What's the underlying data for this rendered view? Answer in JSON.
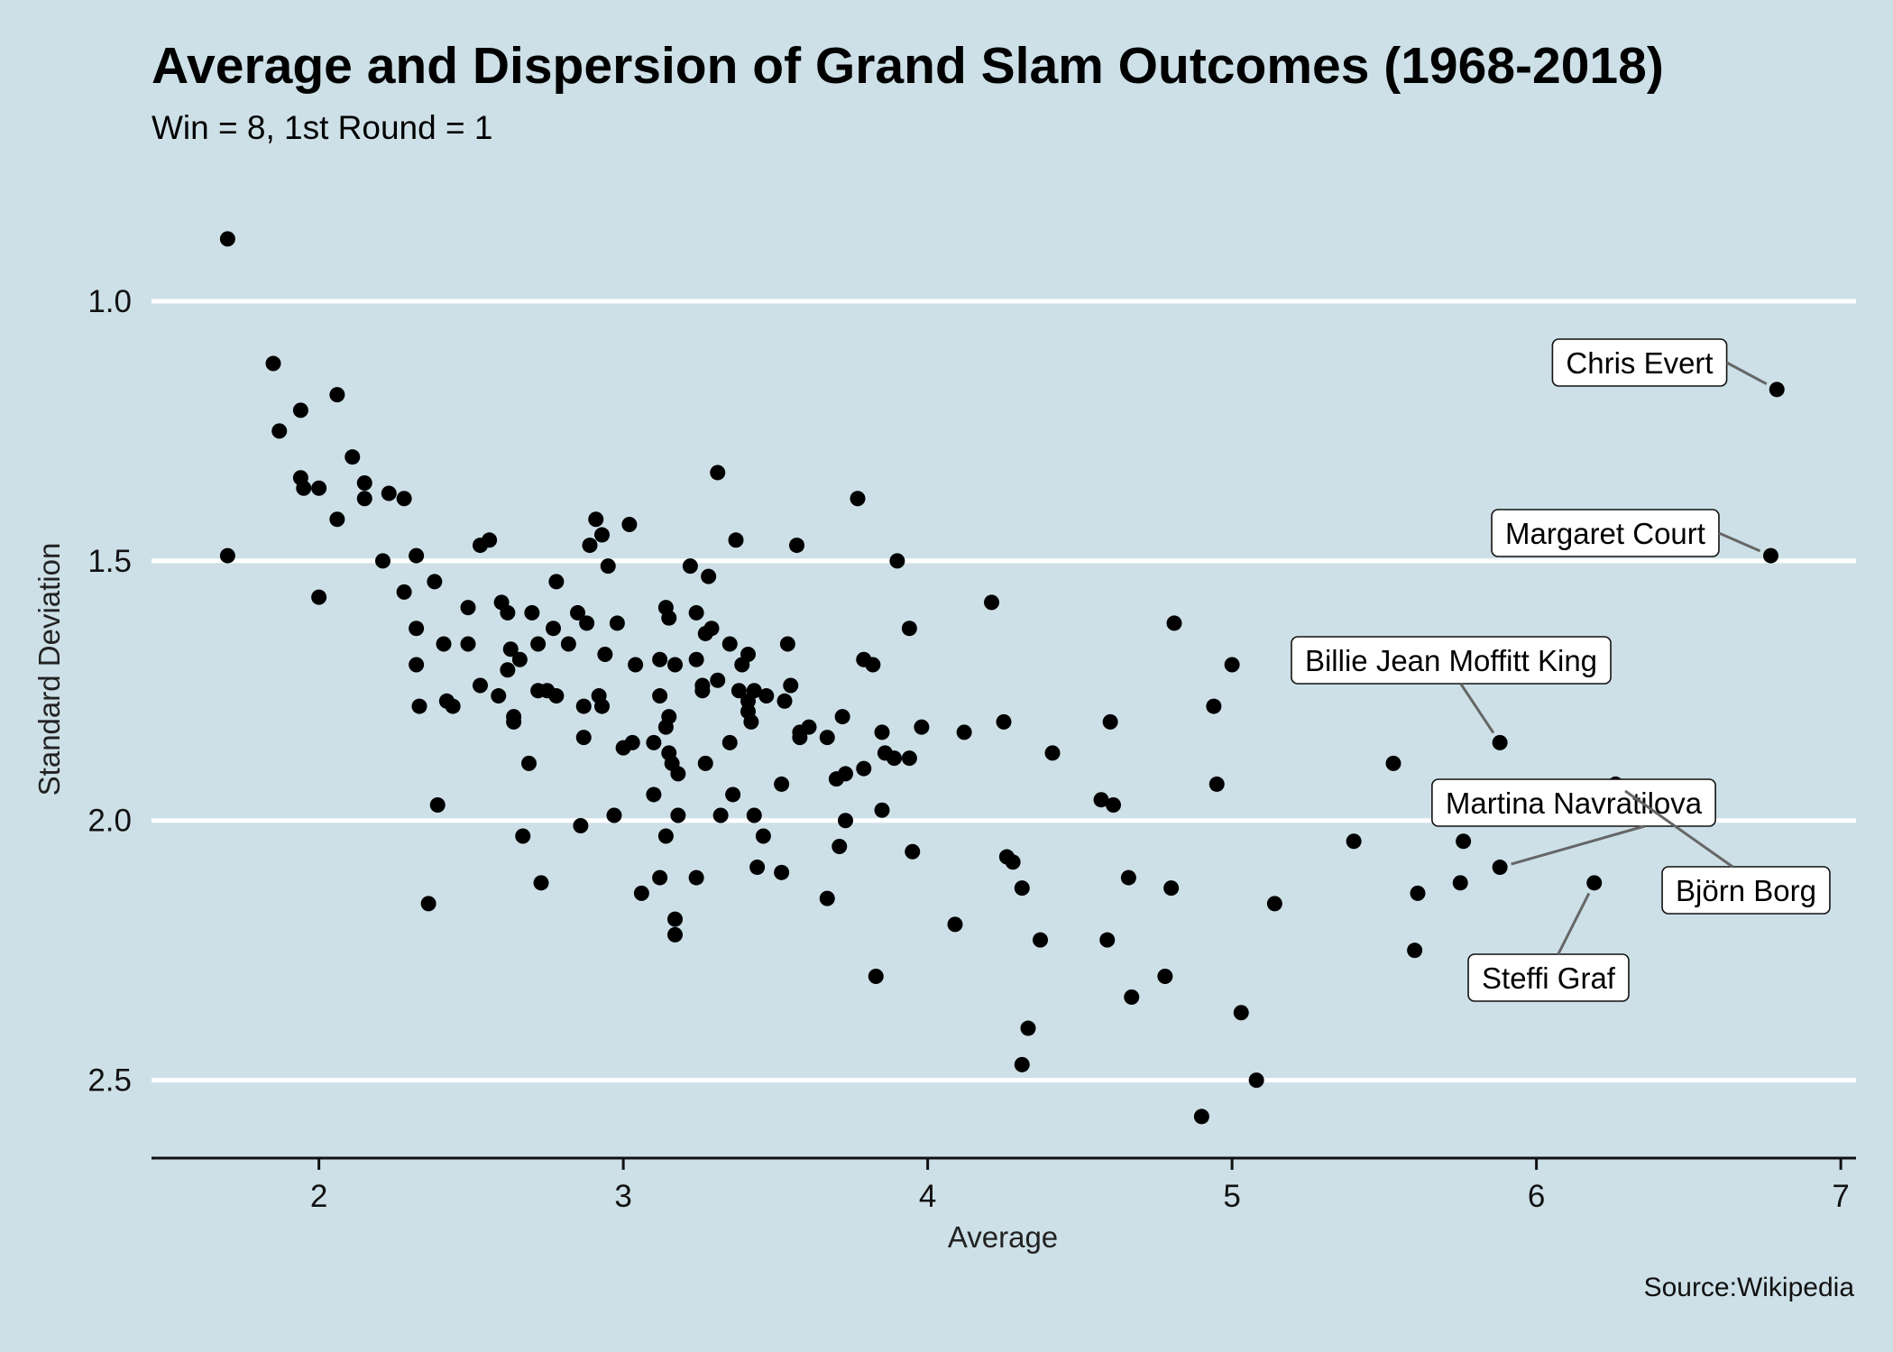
{
  "chart_data": {
    "type": "scatter",
    "title": "Average and Dispersion of Grand Slam Outcomes (1968-2018)",
    "subtitle": "Win = 8, 1st Round = 1",
    "xlabel": "Average",
    "ylabel": "Standard Deviation",
    "caption": "Source:Wikipedia",
    "xlim": [
      1.45,
      7.05
    ],
    "ylim": [
      0.75,
      2.65
    ],
    "y_reversed": true,
    "x_ticks": [
      "2",
      "3",
      "4",
      "5",
      "6",
      "7"
    ],
    "y_ticks": [
      "1.0",
      "1.5",
      "2.0",
      "2.5"
    ],
    "grid": "horizontal major lines, white",
    "point_color": "#000000",
    "background": "#cde0e7",
    "points": [
      [
        1.7,
        0.88
      ],
      [
        1.7,
        1.49
      ],
      [
        1.85,
        1.12
      ],
      [
        1.87,
        1.25
      ],
      [
        1.94,
        1.21
      ],
      [
        1.94,
        1.34
      ],
      [
        1.95,
        1.36
      ],
      [
        2.0,
        1.36
      ],
      [
        2.0,
        1.57
      ],
      [
        2.06,
        1.18
      ],
      [
        2.06,
        1.42
      ],
      [
        2.11,
        1.3
      ],
      [
        2.15,
        1.35
      ],
      [
        2.15,
        1.38
      ],
      [
        2.21,
        1.5
      ],
      [
        2.23,
        1.37
      ],
      [
        2.28,
        1.38
      ],
      [
        2.28,
        1.56
      ],
      [
        2.32,
        1.49
      ],
      [
        2.32,
        1.63
      ],
      [
        2.32,
        1.7
      ],
      [
        2.33,
        1.78
      ],
      [
        2.38,
        1.54
      ],
      [
        2.39,
        1.97
      ],
      [
        2.36,
        2.16
      ],
      [
        2.41,
        1.66
      ],
      [
        2.42,
        1.77
      ],
      [
        2.44,
        1.78
      ],
      [
        2.49,
        1.59
      ],
      [
        2.49,
        1.66
      ],
      [
        2.53,
        1.47
      ],
      [
        2.53,
        1.74
      ],
      [
        2.56,
        1.46
      ],
      [
        2.59,
        1.76
      ],
      [
        2.6,
        1.58
      ],
      [
        2.62,
        1.6
      ],
      [
        2.62,
        1.71
      ],
      [
        2.63,
        1.67
      ],
      [
        2.64,
        1.8
      ],
      [
        2.64,
        1.81
      ],
      [
        2.66,
        1.69
      ],
      [
        2.67,
        2.03
      ],
      [
        2.69,
        1.89
      ],
      [
        2.7,
        1.6
      ],
      [
        2.72,
        1.66
      ],
      [
        2.72,
        1.75
      ],
      [
        2.73,
        2.12
      ],
      [
        2.75,
        1.75
      ],
      [
        2.77,
        1.63
      ],
      [
        2.78,
        1.54
      ],
      [
        2.78,
        1.76
      ],
      [
        2.82,
        1.66
      ],
      [
        2.85,
        1.6
      ],
      [
        2.86,
        2.01
      ],
      [
        2.87,
        1.78
      ],
      [
        2.87,
        1.84
      ],
      [
        2.88,
        1.62
      ],
      [
        2.89,
        1.47
      ],
      [
        2.91,
        1.42
      ],
      [
        2.92,
        1.76
      ],
      [
        2.93,
        1.45
      ],
      [
        2.93,
        1.78
      ],
      [
        2.94,
        1.68
      ],
      [
        2.95,
        1.51
      ],
      [
        2.97,
        1.99
      ],
      [
        2.98,
        1.62
      ],
      [
        3.0,
        1.86
      ],
      [
        3.02,
        1.43
      ],
      [
        3.03,
        1.85
      ],
      [
        3.04,
        1.7
      ],
      [
        3.06,
        2.14
      ],
      [
        3.1,
        1.85
      ],
      [
        3.1,
        1.95
      ],
      [
        3.12,
        1.69
      ],
      [
        3.12,
        1.76
      ],
      [
        3.12,
        2.11
      ],
      [
        3.14,
        1.59
      ],
      [
        3.14,
        1.82
      ],
      [
        3.14,
        2.03
      ],
      [
        3.15,
        1.61
      ],
      [
        3.15,
        1.8
      ],
      [
        3.15,
        1.87
      ],
      [
        3.16,
        1.89
      ],
      [
        3.17,
        1.7
      ],
      [
        3.17,
        2.19
      ],
      [
        3.17,
        2.22
      ],
      [
        3.18,
        1.91
      ],
      [
        3.18,
        1.99
      ],
      [
        3.22,
        1.51
      ],
      [
        3.24,
        1.6
      ],
      [
        3.24,
        1.69
      ],
      [
        3.24,
        2.11
      ],
      [
        3.26,
        1.74
      ],
      [
        3.26,
        1.75
      ],
      [
        3.27,
        1.64
      ],
      [
        3.27,
        1.89
      ],
      [
        3.28,
        1.53
      ],
      [
        3.29,
        1.63
      ],
      [
        3.31,
        1.33
      ],
      [
        3.31,
        1.73
      ],
      [
        3.32,
        1.99
      ],
      [
        3.35,
        1.66
      ],
      [
        3.35,
        1.85
      ],
      [
        3.36,
        1.95
      ],
      [
        3.37,
        1.46
      ],
      [
        3.38,
        1.75
      ],
      [
        3.39,
        1.7
      ],
      [
        3.41,
        1.68
      ],
      [
        3.41,
        1.77
      ],
      [
        3.41,
        1.79
      ],
      [
        3.42,
        1.81
      ],
      [
        3.43,
        1.75
      ],
      [
        3.43,
        1.99
      ],
      [
        3.44,
        2.09
      ],
      [
        3.46,
        2.03
      ],
      [
        3.47,
        1.76
      ],
      [
        3.52,
        1.93
      ],
      [
        3.52,
        2.1
      ],
      [
        3.53,
        1.77
      ],
      [
        3.54,
        1.66
      ],
      [
        3.55,
        1.74
      ],
      [
        3.57,
        1.47
      ],
      [
        3.58,
        1.83
      ],
      [
        3.58,
        1.84
      ],
      [
        3.61,
        1.82
      ],
      [
        3.67,
        1.84
      ],
      [
        3.67,
        2.15
      ],
      [
        3.7,
        1.92
      ],
      [
        3.71,
        2.05
      ],
      [
        3.72,
        1.8
      ],
      [
        3.73,
        1.91
      ],
      [
        3.73,
        2.0
      ],
      [
        3.77,
        1.38
      ],
      [
        3.79,
        1.69
      ],
      [
        3.79,
        1.9
      ],
      [
        3.82,
        1.7
      ],
      [
        3.83,
        2.3
      ],
      [
        3.85,
        1.83
      ],
      [
        3.85,
        1.98
      ],
      [
        3.86,
        1.87
      ],
      [
        3.89,
        1.88
      ],
      [
        3.9,
        1.5
      ],
      [
        3.94,
        1.63
      ],
      [
        3.94,
        1.88
      ],
      [
        3.95,
        2.06
      ],
      [
        3.98,
        1.82
      ],
      [
        4.09,
        2.2
      ],
      [
        4.12,
        1.83
      ],
      [
        4.21,
        1.58
      ],
      [
        4.25,
        1.81
      ],
      [
        4.26,
        2.07
      ],
      [
        4.28,
        2.08
      ],
      [
        4.31,
        2.13
      ],
      [
        4.31,
        2.47
      ],
      [
        4.33,
        2.4
      ],
      [
        4.37,
        2.23
      ],
      [
        4.41,
        1.87
      ],
      [
        4.57,
        1.96
      ],
      [
        4.59,
        2.23
      ],
      [
        4.6,
        1.81
      ],
      [
        4.61,
        1.97
      ],
      [
        4.66,
        2.11
      ],
      [
        4.67,
        2.34
      ],
      [
        4.78,
        2.3
      ],
      [
        4.8,
        2.13
      ],
      [
        4.81,
        1.62
      ],
      [
        4.9,
        2.57
      ],
      [
        4.94,
        1.78
      ],
      [
        4.95,
        1.93
      ],
      [
        5.0,
        1.7
      ],
      [
        5.03,
        2.37
      ],
      [
        5.08,
        2.5
      ],
      [
        5.14,
        2.16
      ],
      [
        5.4,
        2.04
      ],
      [
        5.53,
        1.89
      ],
      [
        5.6,
        2.25
      ],
      [
        5.61,
        2.14
      ],
      [
        5.75,
        2.12
      ],
      [
        5.76,
        2.04
      ],
      [
        5.88,
        2.09
      ],
      [
        5.88,
        1.85
      ],
      [
        6.19,
        2.12
      ],
      [
        6.26,
        1.93
      ],
      [
        6.77,
        1.49
      ],
      [
        6.79,
        1.17
      ]
    ],
    "annotations": [
      {
        "label": "Chris Evert",
        "x": 6.79,
        "y": 1.17
      },
      {
        "label": "Margaret Court",
        "x": 6.77,
        "y": 1.49
      },
      {
        "label": "Billie Jean Moffitt King",
        "x": 5.88,
        "y": 1.85
      },
      {
        "label": "Martina Navratilova",
        "x": 5.88,
        "y": 2.09
      },
      {
        "label": "Björn Borg",
        "x": 6.26,
        "y": 1.93
      },
      {
        "label": "Steffi Graf",
        "x": 6.19,
        "y": 2.12
      }
    ]
  }
}
